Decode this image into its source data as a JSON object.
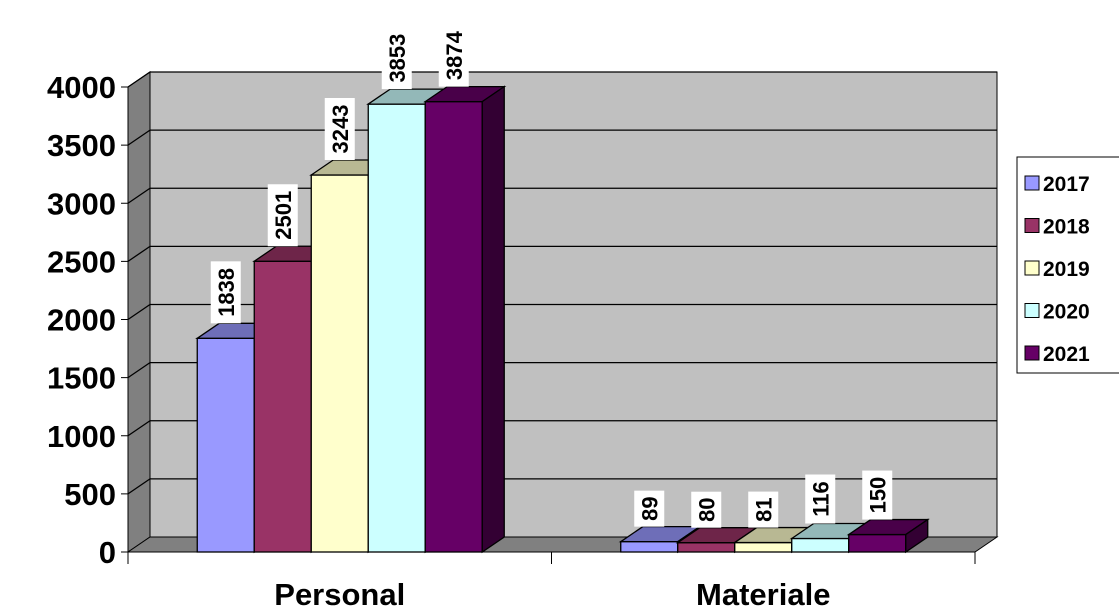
{
  "chart_data": {
    "type": "bar",
    "title": "",
    "xlabel": "",
    "ylabel": "",
    "categories": [
      "Personal",
      "Materiale"
    ],
    "series": [
      {
        "name": "2017",
        "values": [
          1838,
          89
        ],
        "color": "#9999ff"
      },
      {
        "name": "2018",
        "values": [
          2501,
          80
        ],
        "color": "#993366"
      },
      {
        "name": "2019",
        "values": [
          3243,
          81
        ],
        "color": "#ffffcc"
      },
      {
        "name": "2020",
        "values": [
          3853,
          116
        ],
        "color": "#ccffff"
      },
      {
        "name": "2021",
        "values": [
          3874,
          150
        ],
        "color": "#660066"
      }
    ],
    "ylim": [
      0,
      4000
    ],
    "yticks": [
      0,
      500,
      1000,
      1500,
      2000,
      2500,
      3000,
      3500,
      4000
    ],
    "grid": true,
    "three_d": true,
    "wall_color": "#c0c0c0",
    "legend_position": "right"
  }
}
